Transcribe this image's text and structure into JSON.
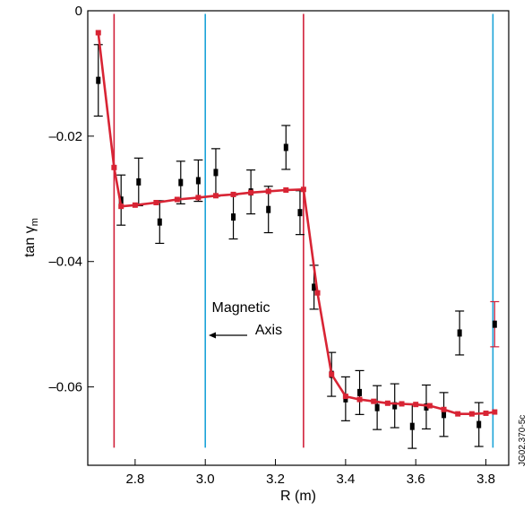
{
  "chart_data": {
    "type": "scatter",
    "xlabel": "R (m)",
    "ylabel_main": "tan γ",
    "ylabel_sub": "m",
    "xlim": [
      2.665,
      3.865
    ],
    "ylim": [
      -0.0725,
      0.0
    ],
    "x_ticks": [
      2.8,
      3.0,
      3.2,
      3.4,
      3.6,
      3.8
    ],
    "x_tick_labels": [
      "2.8",
      "3.0",
      "3.2",
      "3.4",
      "3.6",
      "3.8"
    ],
    "y_ticks": [
      0,
      -0.02,
      -0.04,
      -0.06
    ],
    "y_tick_labels": [
      "0",
      "–0.02",
      "–0.04",
      "–0.06"
    ],
    "grid": false,
    "annotation": {
      "line1": "Magnetic",
      "line2": "Axis",
      "arrow": "left",
      "x": 3.0,
      "y": -0.0512
    },
    "figure_code": "JG02.370-5c",
    "vertical_lines": [
      {
        "x": 2.74,
        "color": "#d0203a"
      },
      {
        "x": 3.0,
        "color": "#1aa3d8"
      },
      {
        "x": 3.28,
        "color": "#d0203a"
      },
      {
        "x": 3.82,
        "color": "#1aa3d8"
      }
    ],
    "vertical_lines_ymax": -0.0005,
    "vertical_lines_ymin": -0.0697,
    "series": [
      {
        "type": "errorbar",
        "color": "#000000",
        "points": [
          {
            "x": 2.695,
            "y": -0.0111,
            "err": 0.0057
          },
          {
            "x": 2.76,
            "y": -0.0302,
            "err": 0.004
          },
          {
            "x": 2.81,
            "y": -0.0273,
            "err": 0.0038
          },
          {
            "x": 2.87,
            "y": -0.0337,
            "err": 0.0034
          },
          {
            "x": 2.93,
            "y": -0.0274,
            "err": 0.0034
          },
          {
            "x": 2.98,
            "y": -0.0271,
            "err": 0.0033
          },
          {
            "x": 3.03,
            "y": -0.0258,
            "err": 0.0038
          },
          {
            "x": 3.08,
            "y": -0.0329,
            "err": 0.0035
          },
          {
            "x": 3.13,
            "y": -0.0289,
            "err": 0.0035
          },
          {
            "x": 3.18,
            "y": -0.0317,
            "err": 0.0037
          },
          {
            "x": 3.23,
            "y": -0.0218,
            "err": 0.0035
          },
          {
            "x": 3.27,
            "y": -0.0322,
            "err": 0.0035
          },
          {
            "x": 3.31,
            "y": -0.0441,
            "err": 0.0035
          },
          {
            "x": 3.36,
            "y": -0.058,
            "err": 0.0035
          },
          {
            "x": 3.4,
            "y": -0.0619,
            "err": 0.0035
          },
          {
            "x": 3.44,
            "y": -0.0609,
            "err": 0.0035
          },
          {
            "x": 3.49,
            "y": -0.0633,
            "err": 0.0035
          },
          {
            "x": 3.54,
            "y": -0.063,
            "err": 0.0035
          },
          {
            "x": 3.59,
            "y": -0.0663,
            "err": 0.0035
          },
          {
            "x": 3.63,
            "y": -0.0632,
            "err": 0.0035
          },
          {
            "x": 3.68,
            "y": -0.0644,
            "err": 0.0035
          },
          {
            "x": 3.725,
            "y": -0.0514,
            "err": 0.0035
          },
          {
            "x": 3.78,
            "y": -0.066,
            "err": 0.0035
          }
        ]
      },
      {
        "type": "errorbar",
        "color": "#d0203a",
        "points": [
          {
            "x": 3.825,
            "y": -0.05,
            "err": 0.0036
          }
        ]
      },
      {
        "type": "line",
        "color": "#d82434",
        "x": [
          2.695,
          2.74,
          2.76,
          2.8,
          2.86,
          2.92,
          2.98,
          3.03,
          3.08,
          3.13,
          3.18,
          3.23,
          3.28,
          3.32,
          3.36,
          3.4,
          3.44,
          3.48,
          3.52,
          3.56,
          3.6,
          3.64,
          3.68,
          3.72,
          3.76,
          3.8,
          3.825
        ],
        "y": [
          -0.0035,
          -0.025,
          -0.0312,
          -0.031,
          -0.0306,
          -0.0301,
          -0.0298,
          -0.0295,
          -0.0293,
          -0.029,
          -0.0288,
          -0.0286,
          -0.0285,
          -0.045,
          -0.058,
          -0.0615,
          -0.062,
          -0.0623,
          -0.0626,
          -0.0627,
          -0.0628,
          -0.063,
          -0.0636,
          -0.0643,
          -0.0643,
          -0.0642,
          -0.064
        ]
      }
    ]
  }
}
